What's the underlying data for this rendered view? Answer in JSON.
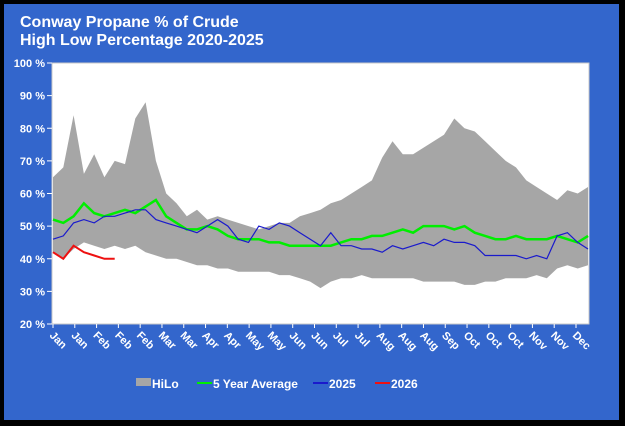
{
  "chart_data": {
    "type": "area",
    "title": "Conway Propane % of Crude",
    "subtitle": "High Low Percentage 2020-2025",
    "xlabel": "",
    "ylabel": "",
    "ylim": [
      20,
      100
    ],
    "yticks": [
      "20 %",
      "30 %",
      "40 %",
      "50 %",
      "60 %",
      "70 %",
      "80 %",
      "90 %",
      "100 %"
    ],
    "ytick_values": [
      20,
      30,
      40,
      50,
      60,
      70,
      80,
      90,
      100
    ],
    "xtick_labels": [
      "Jan",
      "Jan",
      "Feb",
      "Feb",
      "Feb",
      "Mar",
      "Mar",
      "Apr",
      "Apr",
      "May",
      "May",
      "Jun",
      "Jun",
      "Jul",
      "Jul",
      "Aug",
      "Aug",
      "Aug",
      "Sep",
      "Oct",
      "Oct",
      "Oct",
      "Nov",
      "Nov",
      "Dec"
    ],
    "grid": false,
    "legend_position": "bottom",
    "background": "#3366CC",
    "plot_background": "#FFFFFF",
    "series": [
      {
        "name": "HiLo",
        "kind": "band",
        "color": "#A6A6A6",
        "high": [
          65,
          68,
          84,
          66,
          72,
          65,
          70,
          69,
          83,
          88,
          70,
          60,
          57,
          53,
          55,
          52,
          53,
          52,
          51,
          50,
          49,
          50,
          51,
          51,
          53,
          54,
          55,
          57,
          58,
          60,
          62,
          64,
          71,
          76,
          72,
          72,
          74,
          76,
          78,
          83,
          80,
          79,
          76,
          73,
          70,
          68,
          64,
          62,
          60,
          58,
          61,
          60,
          62
        ],
        "low": [
          42,
          40,
          43,
          45,
          44,
          43,
          44,
          43,
          44,
          42,
          41,
          40,
          40,
          39,
          38,
          38,
          37,
          37,
          36,
          36,
          36,
          36,
          35,
          35,
          34,
          33,
          31,
          33,
          34,
          34,
          35,
          34,
          34,
          34,
          34,
          34,
          33,
          33,
          33,
          33,
          32,
          32,
          33,
          33,
          34,
          34,
          34,
          35,
          34,
          37,
          38,
          37,
          38
        ]
      },
      {
        "name": "5 Year Average",
        "kind": "line",
        "color": "#00EE00",
        "values": [
          52,
          51,
          53,
          57,
          54,
          53,
          54,
          55,
          54,
          56,
          58,
          53,
          51,
          49,
          49,
          50,
          49,
          47,
          46,
          46,
          46,
          45,
          45,
          44,
          44,
          44,
          44,
          44,
          45,
          46,
          46,
          47,
          47,
          48,
          49,
          48,
          50,
          50,
          50,
          49,
          50,
          48,
          47,
          46,
          46,
          47,
          46,
          46,
          46,
          47,
          46,
          45,
          47
        ]
      },
      {
        "name": "2025",
        "kind": "line",
        "color": "#1A1ACC",
        "values": [
          46,
          47,
          51,
          52,
          51,
          53,
          53,
          54,
          55,
          55,
          52,
          51,
          50,
          49,
          48,
          50,
          52,
          50,
          46,
          45,
          50,
          49,
          51,
          50,
          48,
          46,
          44,
          48,
          44,
          44,
          43,
          43,
          42,
          44,
          43,
          44,
          45,
          44,
          46,
          45,
          45,
          44,
          41,
          41,
          41,
          41,
          40,
          41,
          40,
          47,
          48,
          45,
          43
        ]
      },
      {
        "name": "2026",
        "kind": "line",
        "color": "#EE1111",
        "values": [
          42,
          40,
          44,
          42,
          41,
          40,
          40
        ]
      }
    ]
  }
}
